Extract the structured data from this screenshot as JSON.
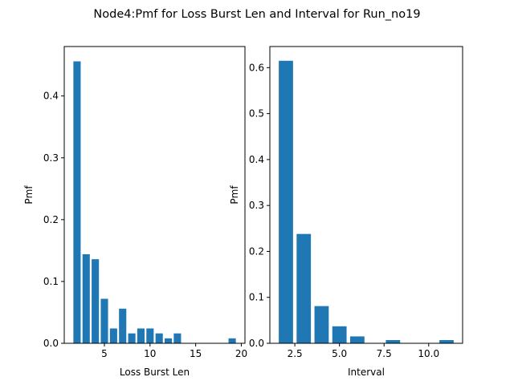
{
  "figure": {
    "suptitle": "Node4:Pmf for Loss Burst Len and Interval for Run_no19"
  },
  "chart_data": [
    {
      "type": "bar",
      "xlabel": "Loss Burst Len",
      "ylabel": "Pmf",
      "xlim": [
        0.6,
        20.4
      ],
      "ylim": [
        0,
        0.48
      ],
      "xticks": [
        5,
        10,
        15,
        20
      ],
      "xtick_labels": [
        "5",
        "10",
        "15",
        "20"
      ],
      "yticks": [
        0.0,
        0.1,
        0.2,
        0.3,
        0.4
      ],
      "ytick_labels": [
        "0.0",
        "0.1",
        "0.2",
        "0.3",
        "0.4"
      ],
      "bar_width": 0.8,
      "color": "#1f77b4",
      "x": [
        2,
        3,
        4,
        5,
        6,
        7,
        8,
        9,
        10,
        11,
        12,
        13,
        19
      ],
      "values": [
        0.456,
        0.144,
        0.136,
        0.072,
        0.024,
        0.056,
        0.016,
        0.024,
        0.024,
        0.016,
        0.008,
        0.016,
        0.008
      ]
    },
    {
      "type": "bar",
      "xlabel": "Interval",
      "ylabel": "Pmf",
      "xlim": [
        1.1,
        11.9
      ],
      "ylim": [
        0,
        0.646
      ],
      "xticks": [
        2.5,
        5.0,
        7.5,
        10.0
      ],
      "xtick_labels": [
        "2.5",
        "5.0",
        "7.5",
        "10.0"
      ],
      "yticks": [
        0.0,
        0.1,
        0.2,
        0.3,
        0.4,
        0.5,
        0.6
      ],
      "ytick_labels": [
        "0.0",
        "0.1",
        "0.2",
        "0.3",
        "0.4",
        "0.5",
        "0.6"
      ],
      "bar_width": 0.8,
      "color": "#1f77b4",
      "x": [
        2,
        3,
        4,
        5,
        6,
        8,
        11
      ],
      "values": [
        0.615,
        0.238,
        0.081,
        0.037,
        0.015,
        0.007,
        0.007
      ]
    }
  ]
}
